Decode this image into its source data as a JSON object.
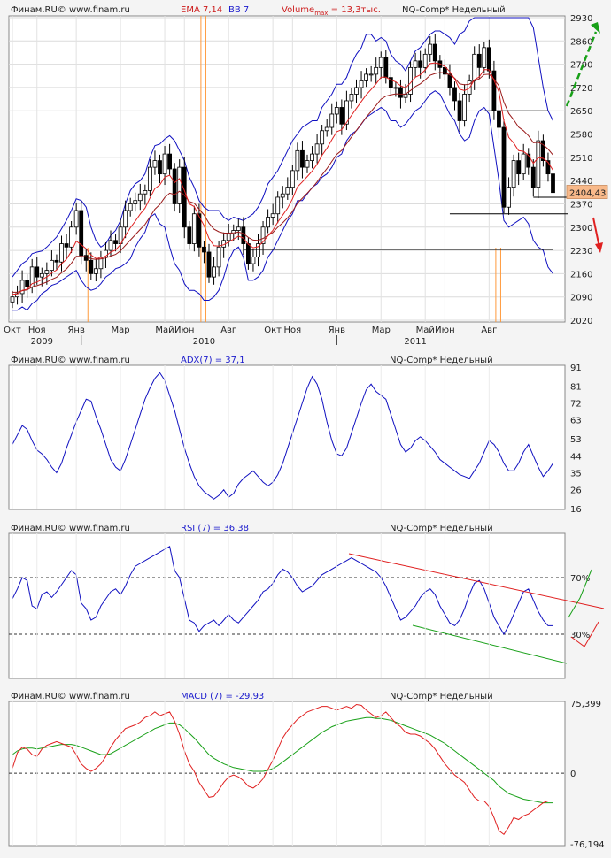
{
  "header": {
    "source": "Финам.RU©  www.finam.ru",
    "instrument": "NQ-Comp* Недельный"
  },
  "colors": {
    "up_candle": "#ffffff",
    "down_candle": "#000000",
    "ema_fast": "#e02020",
    "ema_slow": "#9a1a1a",
    "bollinger": "#1010c0",
    "indicator_line": "#1010c0",
    "macd_line": "#e02020",
    "signal_line": "#18a018",
    "volume_marker": "#ff9a3c",
    "trend_up": "#18a018",
    "trend_down": "#e02020",
    "price_label_bg": "#f8b98a"
  },
  "chart_data": [
    {
      "type": "candlestick",
      "id": "price",
      "legend": {
        "ema": "EMA 7,14",
        "bb": "BB 7",
        "volume": "Volume",
        "volume_sub": "max",
        "volume_value": " = 13,3тыс."
      },
      "ylim": [
        2020,
        2930
      ],
      "y_ticks": [
        "2930",
        "2860",
        "2790",
        "2720",
        "2650",
        "2580",
        "2510",
        "2440",
        "2370",
        "2300",
        "2230",
        "2160",
        "2090",
        "2020"
      ],
      "x_tick_labels": [
        {
          "label": "Окт",
          "i": 0
        },
        {
          "label": "Ноя",
          "i": 5
        },
        {
          "label": "Янв",
          "i": 13
        },
        {
          "label": "Мар",
          "i": 22
        },
        {
          "label": "Май",
          "i": 31
        },
        {
          "label": "Июн",
          "i": 35
        },
        {
          "label": "Авг",
          "i": 44
        },
        {
          "label": "Окт",
          "i": 53
        },
        {
          "label": "Ноя",
          "i": 57
        },
        {
          "label": "Янв",
          "i": 66
        },
        {
          "label": "Мар",
          "i": 75
        },
        {
          "label": "Май",
          "i": 84
        },
        {
          "label": "Июн",
          "i": 88
        },
        {
          "label": "Авг",
          "i": 97
        }
      ],
      "year_labels": [
        {
          "label": "2009",
          "i": 6
        },
        {
          "label": "2010",
          "i": 39
        },
        {
          "label": "2011",
          "i": 82
        }
      ],
      "year_separators": [
        14,
        66
      ],
      "last_price": "2404,43",
      "close": [
        2090,
        2100,
        2140,
        2120,
        2180,
        2150,
        2160,
        2170,
        2200,
        2195,
        2250,
        2240,
        2300,
        2350,
        2215,
        2200,
        2160,
        2175,
        2210,
        2230,
        2260,
        2250,
        2300,
        2350,
        2370,
        2380,
        2400,
        2410,
        2480,
        2500,
        2460,
        2520,
        2475,
        2370,
        2480,
        2300,
        2250,
        2340,
        2240,
        2225,
        2150,
        2180,
        2240,
        2260,
        2280,
        2290,
        2300,
        2250,
        2190,
        2210,
        2250,
        2300,
        2330,
        2340,
        2390,
        2400,
        2420,
        2470,
        2530,
        2480,
        2500,
        2520,
        2550,
        2590,
        2600,
        2640,
        2660,
        2610,
        2680,
        2700,
        2720,
        2740,
        2760,
        2760,
        2780,
        2810,
        2750,
        2720,
        2720,
        2690,
        2700,
        2780,
        2800,
        2780,
        2820,
        2850,
        2800,
        2780,
        2760,
        2720,
        2680,
        2620,
        2700,
        2740,
        2820,
        2780,
        2840,
        2770,
        2650,
        2600,
        2360,
        2420,
        2500,
        2460,
        2520,
        2480,
        2420,
        2560,
        2500,
        2460,
        2404
      ],
      "ema_fast": [
        2098,
        2099,
        2110,
        2113,
        2130,
        2135,
        2142,
        2150,
        2162,
        2171,
        2190,
        2203,
        2227,
        2258,
        2247,
        2235,
        2216,
        2206,
        2207,
        2213,
        2225,
        2231,
        2248,
        2274,
        2298,
        2318,
        2339,
        2357,
        2388,
        2416,
        2427,
        2450,
        2456,
        2434,
        2446,
        2410,
        2370,
        2362,
        2332,
        2305,
        2266,
        2244,
        2243,
        2247,
        2255,
        2264,
        2273,
        2267,
        2248,
        2238,
        2241,
        2256,
        2274,
        2290,
        2315,
        2336,
        2357,
        2385,
        2421,
        2436,
        2452,
        2469,
        2489,
        2516,
        2537,
        2563,
        2587,
        2593,
        2615,
        2636,
        2657,
        2678,
        2698,
        2714,
        2731,
        2751,
        2751,
        2743,
        2737,
        2725,
        2719,
        2734,
        2751,
        2758,
        2773,
        2792,
        2794,
        2791,
        2783,
        2768,
        2746,
        2715,
        2711,
        2718,
        2743,
        2752,
        2774,
        2773,
        2742,
        2707,
        2620,
        2570,
        2553,
        2530,
        2528,
        2516,
        2492,
        2509,
        2507,
        2495,
        2471
      ],
      "ema_slow": [
        2104,
        2104,
        2109,
        2111,
        2120,
        2124,
        2129,
        2135,
        2143,
        2149,
        2163,
        2174,
        2191,
        2212,
        2212,
        2211,
        2205,
        2203,
        2204,
        2207,
        2213,
        2218,
        2229,
        2245,
        2261,
        2277,
        2293,
        2308,
        2331,
        2354,
        2368,
        2389,
        2402,
        2398,
        2408,
        2396,
        2377,
        2372,
        2354,
        2337,
        2312,
        2294,
        2286,
        2282,
        2282,
        2283,
        2285,
        2281,
        2269,
        2261,
        2260,
        2266,
        2275,
        2284,
        2300,
        2313,
        2328,
        2347,
        2372,
        2387,
        2402,
        2418,
        2436,
        2457,
        2476,
        2498,
        2519,
        2531,
        2551,
        2571,
        2591,
        2611,
        2631,
        2648,
        2666,
        2685,
        2694,
        2698,
        2701,
        2700,
        2700,
        2711,
        2723,
        2731,
        2743,
        2757,
        2762,
        2765,
        2764,
        2758,
        2748,
        2731,
        2728,
        2730,
        2741,
        2746,
        2759,
        2760,
        2745,
        2725,
        2676,
        2642,
        2623,
        2601,
        2590,
        2575,
        2554,
        2555,
        2548,
        2535,
        2517
      ],
      "bb_upper": [
        2150,
        2170,
        2190,
        2200,
        2220,
        2225,
        2228,
        2240,
        2255,
        2270,
        2295,
        2320,
        2350,
        2385,
        2380,
        2360,
        2300,
        2260,
        2240,
        2250,
        2275,
        2290,
        2320,
        2370,
        2410,
        2430,
        2440,
        2460,
        2510,
        2545,
        2550,
        2565,
        2575,
        2560,
        2530,
        2500,
        2450,
        2420,
        2380,
        2360,
        2350,
        2350,
        2350,
        2330,
        2320,
        2330,
        2325,
        2320,
        2330,
        2340,
        2360,
        2390,
        2430,
        2450,
        2470,
        2500,
        2530,
        2560,
        2580,
        2600,
        2610,
        2620,
        2620,
        2660,
        2680,
        2700,
        2730,
        2730,
        2750,
        2790,
        2820,
        2840,
        2880,
        2880,
        2860,
        2870,
        2860,
        2820,
        2800,
        2790,
        2770,
        2800,
        2830,
        2840,
        2860,
        2880,
        2890,
        2890,
        2880,
        2870,
        2850,
        2880,
        2890,
        2920,
        2930,
        2930,
        2930,
        2930,
        2930,
        2930,
        2930,
        2930,
        2930,
        2930,
        2930,
        2930,
        2900,
        2810,
        2720,
        2650,
        2620
      ],
      "bb_lower": [
        2050,
        2050,
        2060,
        2050,
        2070,
        2080,
        2100,
        2110,
        2125,
        2130,
        2140,
        2150,
        2160,
        2170,
        2140,
        2120,
        2110,
        2115,
        2130,
        2150,
        2160,
        2175,
        2180,
        2190,
        2205,
        2240,
        2265,
        2285,
        2330,
        2340,
        2310,
        2300,
        2240,
        2190,
        2170,
        2130,
        2110,
        2110,
        2100,
        2080,
        2080,
        2090,
        2110,
        2150,
        2200,
        2230,
        2240,
        2210,
        2140,
        2140,
        2150,
        2170,
        2210,
        2230,
        2260,
        2290,
        2320,
        2340,
        2380,
        2380,
        2400,
        2420,
        2430,
        2450,
        2460,
        2480,
        2510,
        2520,
        2560,
        2580,
        2590,
        2610,
        2630,
        2640,
        2650,
        2660,
        2650,
        2620,
        2620,
        2600,
        2610,
        2630,
        2650,
        2660,
        2680,
        2700,
        2710,
        2700,
        2670,
        2640,
        2620,
        2580,
        2560,
        2570,
        2620,
        2650,
        2660,
        2640,
        2540,
        2440,
        2320,
        2300,
        2310,
        2320,
        2330,
        2310,
        2260,
        2240,
        2230,
        2180,
        2160
      ],
      "volume_markers_i": [
        15,
        38,
        39,
        98,
        99
      ],
      "annotations": [
        {
          "type": "hline",
          "y": 2233,
          "from_i": 47,
          "to_i": 110
        },
        {
          "type": "hline",
          "y": 2340,
          "from_i": 89,
          "to_i": 113
        },
        {
          "type": "hline",
          "y": 2650,
          "from_i": 96,
          "to_i": 109
        },
        {
          "type": "hline",
          "y": 2390,
          "from_i": 106,
          "to_i": 113
        },
        {
          "type": "arrow",
          "dir": "up",
          "color": "trend_up"
        },
        {
          "type": "arrow",
          "dir": "down",
          "color": "trend_down"
        }
      ]
    },
    {
      "type": "line",
      "id": "adx",
      "legend": "ADX(7) = 37,1",
      "ylim": [
        16,
        91
      ],
      "y_ticks": [
        "91",
        "81",
        "72",
        "63",
        "53",
        "44",
        "35",
        "26",
        "16"
      ],
      "values": [
        50,
        55,
        60,
        58,
        52,
        47,
        45,
        42,
        38,
        35,
        40,
        48,
        55,
        62,
        68,
        74,
        73,
        65,
        58,
        50,
        42,
        38,
        36,
        42,
        50,
        58,
        66,
        74,
        80,
        85,
        88,
        84,
        76,
        68,
        58,
        48,
        40,
        33,
        28,
        25,
        23,
        21,
        23,
        26,
        22,
        24,
        29,
        32,
        34,
        36,
        33,
        30,
        28,
        30,
        34,
        40,
        48,
        56,
        64,
        72,
        80,
        86,
        82,
        74,
        62,
        52,
        45,
        44,
        48,
        56,
        64,
        72,
        79,
        82,
        78,
        76,
        74,
        66,
        58,
        50,
        46,
        48,
        52,
        54,
        52,
        49,
        46,
        42,
        40,
        38,
        36,
        34,
        33,
        32,
        36,
        40,
        46,
        52,
        50,
        46,
        40,
        36,
        36,
        40,
        46,
        50,
        44,
        38,
        33,
        36,
        40
      ],
      "values_note": "line trace"
    },
    {
      "type": "line",
      "id": "rsi",
      "legend": "RSI (7) = 36,38",
      "levels": [
        {
          "label": "70%",
          "y": 70
        },
        {
          "label": "30%",
          "y": 30
        }
      ],
      "ylim": [
        0,
        100
      ],
      "values": [
        55,
        62,
        70,
        68,
        50,
        48,
        58,
        60,
        56,
        60,
        65,
        70,
        75,
        72,
        52,
        48,
        40,
        42,
        50,
        55,
        60,
        62,
        58,
        64,
        72,
        78,
        80,
        82,
        84,
        86,
        88,
        90,
        92,
        75,
        70,
        55,
        40,
        38,
        32,
        36,
        38,
        40,
        36,
        40,
        44,
        40,
        38,
        42,
        46,
        50,
        54,
        60,
        62,
        66,
        72,
        76,
        74,
        70,
        64,
        60,
        62,
        64,
        68,
        72,
        74,
        76,
        78,
        80,
        82,
        84,
        82,
        80,
        78,
        76,
        74,
        70,
        64,
        56,
        48,
        40,
        42,
        46,
        50,
        56,
        60,
        62,
        58,
        50,
        44,
        38,
        36,
        40,
        48,
        58,
        66,
        68,
        62,
        52,
        42,
        36,
        30,
        36,
        44,
        52,
        60,
        62,
        54,
        46,
        40,
        36,
        36
      ]
    },
    {
      "type": "line",
      "id": "macd",
      "legend": "MACD (7) = -29,93",
      "ylim": [
        -76.194,
        75.399
      ],
      "y_ticks": [
        "75,399",
        "0",
        "-76,194"
      ],
      "macd": [
        5,
        22,
        28,
        26,
        20,
        18,
        26,
        30,
        32,
        34,
        32,
        30,
        28,
        20,
        10,
        5,
        2,
        5,
        10,
        18,
        28,
        36,
        42,
        48,
        50,
        52,
        55,
        60,
        62,
        66,
        62,
        64,
        66,
        56,
        42,
        24,
        10,
        2,
        -10,
        -18,
        -26,
        -25,
        -18,
        -10,
        -4,
        -2,
        -4,
        -8,
        -14,
        -16,
        -12,
        -6,
        4,
        14,
        26,
        38,
        46,
        52,
        58,
        62,
        66,
        68,
        70,
        72,
        72,
        70,
        68,
        70,
        72,
        70,
        74,
        73,
        68,
        64,
        60,
        62,
        66,
        60,
        54,
        50,
        44,
        42,
        42,
        40,
        36,
        32,
        26,
        18,
        10,
        4,
        -2,
        -6,
        -10,
        -18,
        -26,
        -30,
        -30,
        -36,
        -48,
        -62,
        -66,
        -58,
        -48,
        -50,
        -46,
        -44,
        -40,
        -36,
        -32,
        -30,
        -29.93
      ],
      "signal": [
        20,
        24,
        26,
        27,
        27,
        26,
        27,
        28,
        29,
        30,
        31,
        31,
        31,
        30,
        28,
        26,
        24,
        22,
        20,
        20,
        21,
        24,
        27,
        30,
        33,
        36,
        39,
        42,
        45,
        48,
        50,
        52,
        54,
        54,
        52,
        48,
        43,
        38,
        32,
        26,
        20,
        16,
        13,
        10,
        8,
        6,
        5,
        4,
        3,
        2,
        2,
        2,
        3,
        5,
        8,
        12,
        16,
        20,
        24,
        28,
        32,
        36,
        40,
        44,
        47,
        50,
        52,
        54,
        56,
        57,
        58,
        59,
        60,
        60,
        59,
        59,
        58,
        57,
        55,
        53,
        51,
        49,
        47,
        45,
        43,
        41,
        38,
        35,
        32,
        28,
        24,
        20,
        16,
        12,
        8,
        4,
        0,
        -4,
        -8,
        -14,
        -18,
        -22,
        -24,
        -26,
        -28,
        -29,
        -30,
        -31,
        -32,
        -32,
        -32
      ]
    }
  ],
  "panels": {
    "adx": {
      "source": "Финам.RU©  www.finam.ru",
      "instrument": "NQ-Comp* Недельный"
    },
    "rsi": {
      "source": "Финам.RU©  www.finam.ru",
      "instrument": "NQ-Comp* Недельный"
    },
    "macd": {
      "source": "Финам.RU©  www.finam.ru",
      "instrument": "NQ-Comp* Недельный"
    }
  }
}
